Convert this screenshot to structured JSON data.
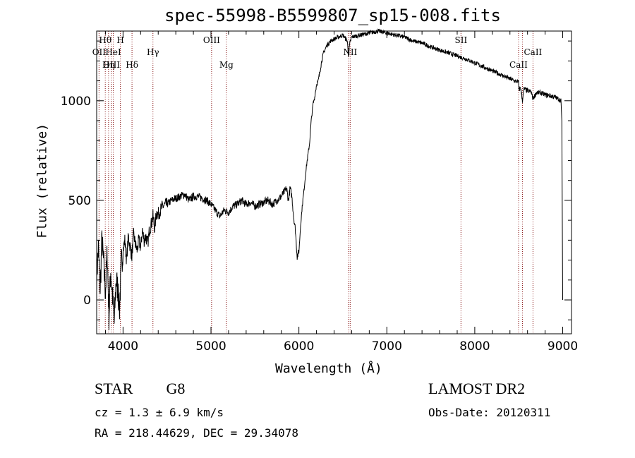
{
  "chart_data": {
    "type": "line",
    "title": "spec-55998-B5599807_sp15-008.fits",
    "xlabel": "Wavelength (Å)",
    "ylabel": "Flux (relative)",
    "xlim": [
      3700,
      9100
    ],
    "ylim": [
      -170,
      1350
    ],
    "xticks": [
      4000,
      5000,
      6000,
      7000,
      8000,
      9000
    ],
    "yticks": [
      0,
      500,
      1000
    ],
    "grid": false,
    "series": [
      {
        "x": [
          3700,
          3720,
          3740,
          3760,
          3780,
          3800,
          3820,
          3840,
          3860,
          3880,
          3900,
          3920,
          3940,
          3960,
          3980,
          4000,
          4020,
          4040,
          4060,
          4080,
          4100,
          4120,
          4140,
          4160,
          4180,
          4200,
          4220,
          4240,
          4260,
          4280,
          4300,
          4320,
          4340,
          4360,
          4380,
          4400,
          4450,
          4500,
          4550,
          4600,
          4650,
          4700,
          4750,
          4800,
          4850,
          4900,
          4950,
          5000,
          5050,
          5100,
          5150,
          5200,
          5250,
          5300,
          5350,
          5400,
          5450,
          5500,
          5550,
          5600,
          5650,
          5700,
          5750,
          5800,
          5830,
          5860,
          5880,
          5900,
          5920,
          5940,
          5960,
          5980,
          6000,
          6020,
          6040,
          6060,
          6080,
          6100,
          6120,
          6140,
          6160,
          6180,
          6200,
          6220,
          6240,
          6260,
          6280,
          6300,
          6320,
          6340,
          6360,
          6400,
          6450,
          6500,
          6550,
          6563,
          6580,
          6600,
          6650,
          6700,
          6750,
          6800,
          6850,
          6900,
          6950,
          7000,
          7050,
          7100,
          7150,
          7200,
          7250,
          7300,
          7400,
          7500,
          7600,
          7700,
          7800,
          7900,
          8000,
          8100,
          8200,
          8300,
          8400,
          8450,
          8498,
          8500,
          8520,
          8542,
          8560,
          8600,
          8640,
          8662,
          8700,
          8750,
          8800,
          8850,
          8900,
          8950,
          8980,
          8990,
          9000
        ],
        "y": [
          120,
          260,
          50,
          300,
          180,
          40,
          240,
          -80,
          150,
          20,
          -120,
          100,
          60,
          -40,
          180,
          250,
          300,
          200,
          320,
          270,
          220,
          330,
          280,
          250,
          300,
          260,
          350,
          300,
          320,
          280,
          350,
          380,
          420,
          360,
          440,
          430,
          470,
          480,
          500,
          510,
          520,
          530,
          500,
          520,
          520,
          510,
          500,
          480,
          450,
          420,
          450,
          440,
          470,
          480,
          500,
          480,
          490,
          470,
          480,
          490,
          500,
          480,
          500,
          520,
          540,
          560,
          500,
          560,
          520,
          420,
          350,
          220,
          240,
          380,
          480,
          560,
          650,
          720,
          780,
          900,
          980,
          1020,
          1080,
          1100,
          1150,
          1200,
          1240,
          1260,
          1280,
          1290,
          1300,
          1310,
          1320,
          1330,
          1300,
          1230,
          1290,
          1320,
          1325,
          1330,
          1335,
          1340,
          1345,
          1350,
          1345,
          1340,
          1335,
          1330,
          1325,
          1320,
          1310,
          1300,
          1290,
          1270,
          1255,
          1240,
          1225,
          1210,
          1190,
          1170,
          1150,
          1130,
          1110,
          1100,
          1095,
          1050,
          1070,
          1000,
          1060,
          1050,
          1045,
          1010,
          1040,
          1040,
          1030,
          1025,
          1020,
          1010,
          1000,
          900,
          0
        ]
      }
    ],
    "lines": [
      {
        "label": "Hθ",
        "x": 3798,
        "row": 0
      },
      {
        "label": "H",
        "x": 3970,
        "row": 0
      },
      {
        "label": "OII",
        "x": 3727,
        "row": 1
      },
      {
        "label": "HeI",
        "x": 3889,
        "row": 1
      },
      {
        "label": "Hγ",
        "x": 4340,
        "row": 1
      },
      {
        "label": "OIII",
        "x": 5007,
        "row": 0
      },
      {
        "label": "OIII",
        "x": 3869,
        "row": 2
      },
      {
        "label": "Hη",
        "x": 3835,
        "row": 2
      },
      {
        "label": "Hδ",
        "x": 4102,
        "row": 2
      },
      {
        "label": "Mg",
        "x": 5175,
        "row": 2
      },
      {
        "label": "NII",
        "x": 6583,
        "row": 1
      },
      {
        "label": "SII",
        "x": 7843,
        "row": 0
      },
      {
        "label": "CaII",
        "x": 8662,
        "row": 1
      },
      {
        "label": "CaII",
        "x": 8498,
        "row": 2
      }
    ],
    "line_positions": [
      3727,
      3798,
      3835,
      3869,
      3889,
      3970,
      4102,
      4340,
      5007,
      5175,
      6563,
      6583,
      7843,
      8498,
      8542,
      8662
    ]
  },
  "footer": {
    "object_class": "STAR",
    "subclass": "G8",
    "survey": "LAMOST DR2",
    "cz": "cz = 1.3 ± 6.9 km/s",
    "obs_date": "Obs-Date: 20120311",
    "coords": "RA = 218.44629, DEC =  29.34078"
  },
  "colors": {
    "spectrum": "#000000",
    "marker_lines": "#8b1a1a",
    "axes": "#000000"
  }
}
